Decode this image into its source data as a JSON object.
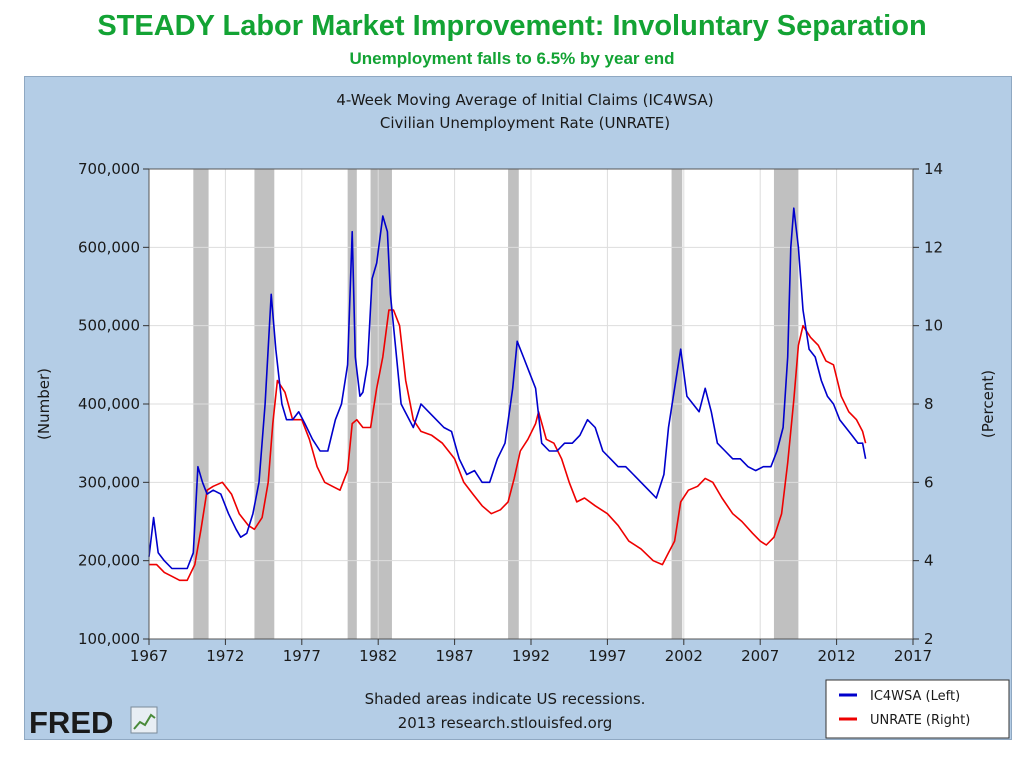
{
  "slide": {
    "title": "STEADY Labor Market Improvement: Involuntary Separation",
    "subtitle": "Unemployment falls to 6.5% by year end"
  },
  "chart_data": {
    "type": "line",
    "title": "4-Week Moving Average of Initial Claims (IC4WSA)",
    "subtitle": "Civilian Unemployment Rate (UNRATE)",
    "ylabel_left": "(Number)",
    "ylabel_right": "(Percent)",
    "xlim": [
      1967,
      2017
    ],
    "ylim_left": [
      100000,
      700000
    ],
    "ylim_right": [
      2,
      14
    ],
    "x_ticks": [
      "1967",
      "1972",
      "1977",
      "1982",
      "1987",
      "1992",
      "1997",
      "2002",
      "2007",
      "2012",
      "2017"
    ],
    "y_left_ticks": [
      "100,000",
      "200,000",
      "300,000",
      "400,000",
      "500,000",
      "600,000",
      "700,000"
    ],
    "y_right_ticks": [
      "2",
      "4",
      "6",
      "8",
      "10",
      "12",
      "14"
    ],
    "grid": true,
    "legend_placement": "bottom-right",
    "recessions": [
      [
        1969.9,
        1970.9
      ],
      [
        1973.9,
        1975.2
      ],
      [
        1980.0,
        1980.6
      ],
      [
        1981.5,
        1982.9
      ],
      [
        1990.5,
        1991.2
      ],
      [
        2001.2,
        2001.9
      ],
      [
        2007.9,
        2009.5
      ]
    ],
    "series": [
      {
        "name": "IC4WSA (Left)",
        "color": "#0000cc",
        "axis": "left",
        "x": [
          1967.0,
          1967.3,
          1967.6,
          1968.0,
          1968.5,
          1969.0,
          1969.5,
          1969.9,
          1970.2,
          1970.5,
          1970.8,
          1971.2,
          1971.7,
          1972.2,
          1972.7,
          1973.0,
          1973.4,
          1973.8,
          1974.2,
          1974.6,
          1975.0,
          1975.3,
          1975.7,
          1976.0,
          1976.4,
          1976.8,
          1977.2,
          1977.7,
          1978.2,
          1978.7,
          1979.2,
          1979.6,
          1980.0,
          1980.3,
          1980.5,
          1980.8,
          1981.0,
          1981.3,
          1981.6,
          1981.9,
          1982.3,
          1982.6,
          1982.8,
          1983.1,
          1983.5,
          1983.9,
          1984.3,
          1984.8,
          1985.3,
          1985.8,
          1986.3,
          1986.8,
          1987.3,
          1987.8,
          1988.3,
          1988.8,
          1989.3,
          1989.8,
          1990.3,
          1990.8,
          1991.1,
          1991.5,
          1991.9,
          1992.3,
          1992.7,
          1993.2,
          1993.7,
          1994.2,
          1994.7,
          1995.2,
          1995.7,
          1996.2,
          1996.7,
          1997.2,
          1997.7,
          1998.2,
          1998.7,
          1999.2,
          1999.7,
          2000.2,
          2000.7,
          2001.0,
          2001.4,
          2001.8,
          2002.2,
          2002.6,
          2003.0,
          2003.4,
          2003.8,
          2004.2,
          2004.7,
          2005.2,
          2005.7,
          2006.2,
          2006.7,
          2007.2,
          2007.7,
          2008.1,
          2008.5,
          2008.8,
          2009.0,
          2009.2,
          2009.5,
          2009.8,
          2010.2,
          2010.6,
          2011.0,
          2011.4,
          2011.8,
          2012.2,
          2012.6,
          2013.0,
          2013.4,
          2013.7,
          2013.9
        ],
        "y": [
          205000,
          255000,
          210000,
          200000,
          190000,
          190000,
          190000,
          210000,
          320000,
          300000,
          285000,
          290000,
          285000,
          260000,
          240000,
          230000,
          235000,
          260000,
          300000,
          400000,
          540000,
          470000,
          400000,
          380000,
          380000,
          390000,
          375000,
          355000,
          340000,
          340000,
          380000,
          400000,
          450000,
          620000,
          460000,
          410000,
          415000,
          450000,
          560000,
          580000,
          640000,
          620000,
          540000,
          480000,
          400000,
          385000,
          370000,
          400000,
          390000,
          380000,
          370000,
          365000,
          330000,
          310000,
          315000,
          300000,
          300000,
          330000,
          350000,
          420000,
          480000,
          460000,
          440000,
          420000,
          350000,
          340000,
          340000,
          350000,
          350000,
          360000,
          380000,
          370000,
          340000,
          330000,
          320000,
          320000,
          310000,
          300000,
          290000,
          280000,
          310000,
          370000,
          420000,
          470000,
          410000,
          400000,
          390000,
          420000,
          390000,
          350000,
          340000,
          330000,
          330000,
          320000,
          315000,
          320000,
          320000,
          340000,
          370000,
          460000,
          600000,
          650000,
          600000,
          520000,
          470000,
          460000,
          430000,
          410000,
          400000,
          380000,
          370000,
          360000,
          350000,
          350000,
          330000
        ]
      },
      {
        "name": "UNRATE (Right)",
        "color": "#ee0000",
        "axis": "right",
        "x": [
          1967.0,
          1967.5,
          1968.0,
          1968.5,
          1969.0,
          1969.5,
          1970.0,
          1970.4,
          1970.8,
          1971.2,
          1971.8,
          1972.4,
          1972.9,
          1973.5,
          1973.9,
          1974.4,
          1974.8,
          1975.1,
          1975.4,
          1975.9,
          1976.4,
          1977.0,
          1977.5,
          1978.0,
          1978.5,
          1979.0,
          1979.5,
          1980.0,
          1980.3,
          1980.6,
          1981.0,
          1981.5,
          1981.9,
          1982.3,
          1982.7,
          1983.0,
          1983.4,
          1983.8,
          1984.3,
          1984.8,
          1985.5,
          1986.2,
          1987.0,
          1987.6,
          1988.2,
          1988.8,
          1989.4,
          1990.0,
          1990.5,
          1990.9,
          1991.3,
          1991.8,
          1992.3,
          1992.5,
          1993.0,
          1993.5,
          1994.0,
          1994.5,
          1995.0,
          1995.5,
          1996.2,
          1997.0,
          1997.7,
          1998.4,
          1999.2,
          2000.0,
          2000.6,
          2001.0,
          2001.4,
          2001.8,
          2002.3,
          2002.9,
          2003.4,
          2003.9,
          2004.5,
          2005.2,
          2005.8,
          2006.5,
          2007.0,
          2007.4,
          2007.9,
          2008.4,
          2008.8,
          2009.2,
          2009.5,
          2009.8,
          2010.3,
          2010.8,
          2011.3,
          2011.8,
          2012.3,
          2012.8,
          2013.3,
          2013.7,
          2013.9
        ],
        "y": [
          3.9,
          3.9,
          3.7,
          3.6,
          3.5,
          3.5,
          3.9,
          4.8,
          5.8,
          5.9,
          6.0,
          5.7,
          5.2,
          4.9,
          4.8,
          5.1,
          6.0,
          7.5,
          8.6,
          8.3,
          7.6,
          7.6,
          7.1,
          6.4,
          6.0,
          5.9,
          5.8,
          6.3,
          7.5,
          7.6,
          7.4,
          7.4,
          8.4,
          9.2,
          10.4,
          10.4,
          10.0,
          8.6,
          7.6,
          7.3,
          7.2,
          7.0,
          6.6,
          6.0,
          5.7,
          5.4,
          5.2,
          5.3,
          5.5,
          6.1,
          6.8,
          7.1,
          7.5,
          7.8,
          7.1,
          7.0,
          6.6,
          6.0,
          5.5,
          5.6,
          5.4,
          5.2,
          4.9,
          4.5,
          4.3,
          4.0,
          3.9,
          4.2,
          4.5,
          5.5,
          5.8,
          5.9,
          6.1,
          6.0,
          5.6,
          5.2,
          5.0,
          4.7,
          4.5,
          4.4,
          4.6,
          5.2,
          6.5,
          8.1,
          9.5,
          10.0,
          9.7,
          9.5,
          9.1,
          9.0,
          8.2,
          7.8,
          7.6,
          7.3,
          7.0
        ]
      }
    ],
    "footer_note": "Shaded areas indicate US recessions.",
    "footer_source": "2013 research.stlouisfed.org",
    "logo_text": "FRED"
  },
  "colors": {
    "panel_bg": "#b4cde6",
    "plot_bg": "#ffffff",
    "recession": "#c0c0c0",
    "title_green": "#13a334"
  }
}
